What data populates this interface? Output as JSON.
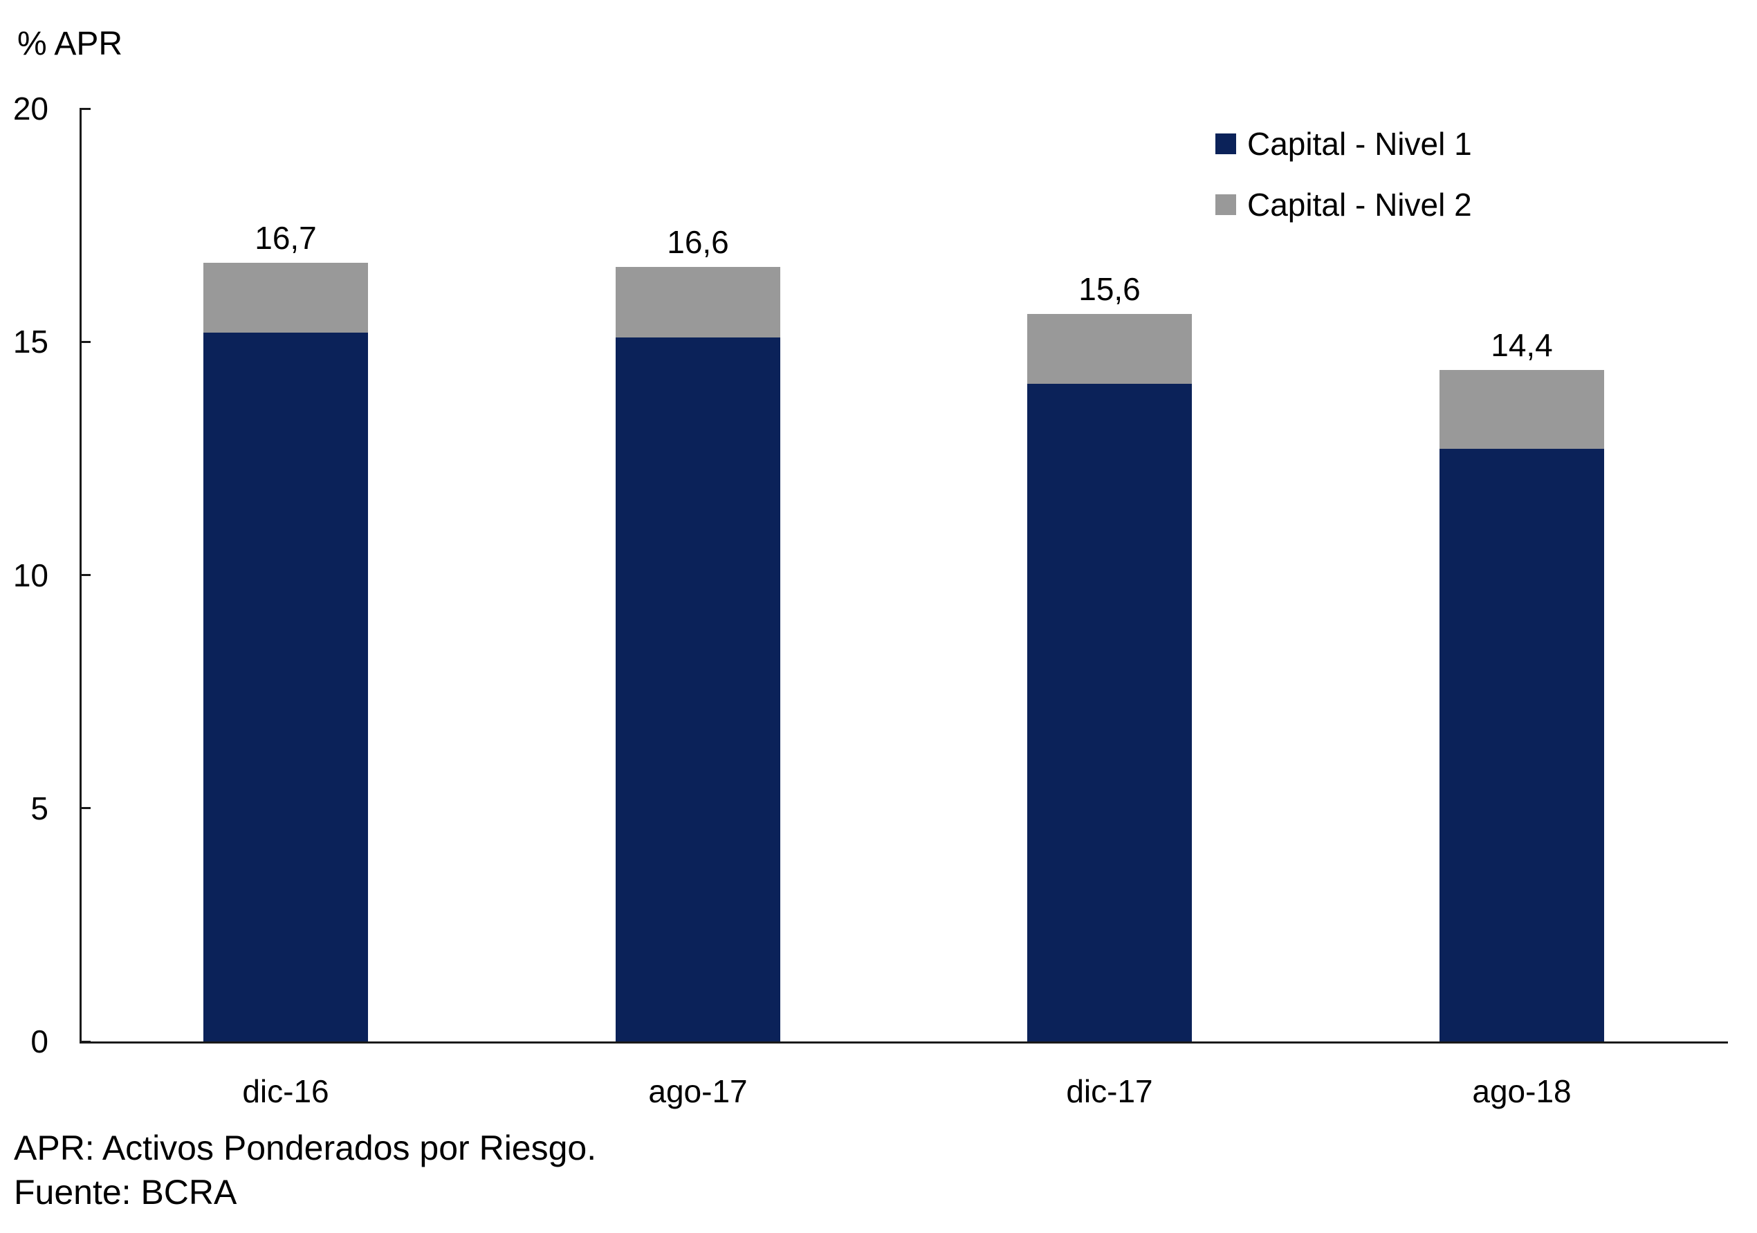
{
  "chart_data": {
    "type": "bar",
    "stacked": true,
    "title": "",
    "ylabel": "% APR",
    "categories": [
      "dic-16",
      "ago-17",
      "dic-17",
      "ago-18"
    ],
    "series": [
      {
        "name": "Capital - Nivel 1",
        "color": "#0b2259",
        "values": [
          15.2,
          15.1,
          14.1,
          12.7
        ]
      },
      {
        "name": "Capital - Nivel 2",
        "color": "#999999",
        "values": [
          1.5,
          1.5,
          1.5,
          1.7
        ]
      }
    ],
    "total_labels": [
      "16,7",
      "16,6",
      "15,6",
      "14,4"
    ],
    "ylim": [
      0,
      20
    ],
    "yticks": [
      0,
      5,
      10,
      15,
      20
    ],
    "grid": false,
    "legend_position": "top-right"
  },
  "footer": {
    "note1": "APR: Activos Ponderados por Riesgo.",
    "note2": "Fuente: BCRA"
  },
  "colors": {
    "nivel1": "#0b2259",
    "nivel2": "#999999",
    "axis": "#1a1a1a",
    "text": "#000000"
  }
}
